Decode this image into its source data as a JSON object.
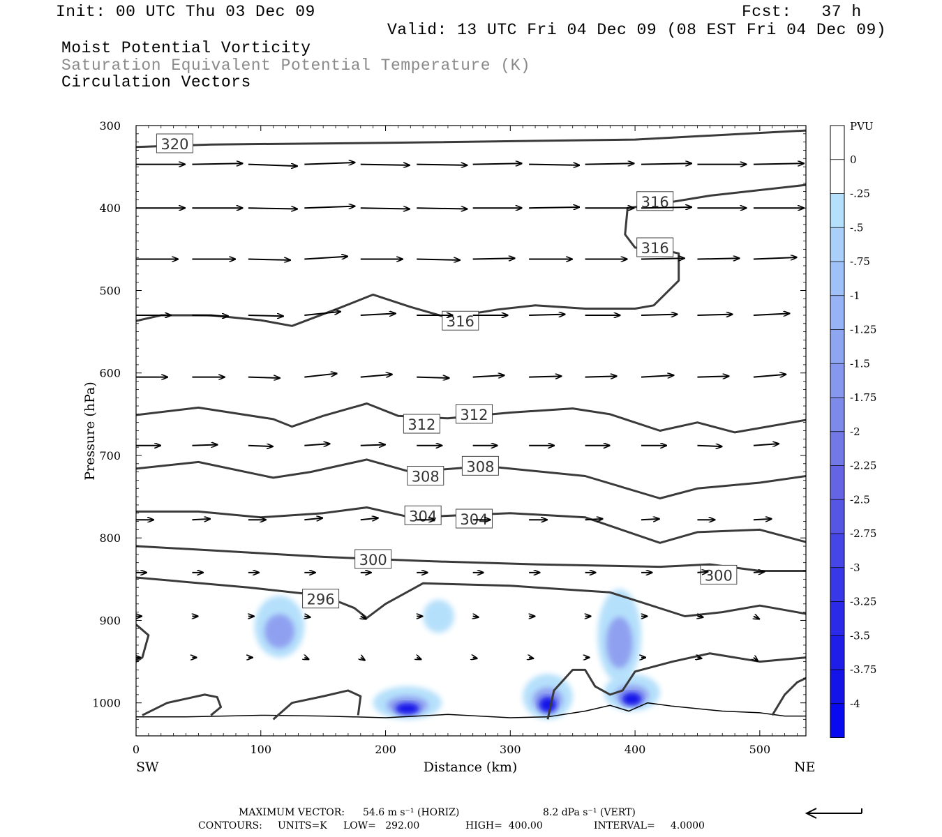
{
  "header": {
    "init": "Init: 00 UTC Thu 03 Dec 09",
    "fcst": "Fcst:   37 h",
    "valid": "Valid: 13 UTC Fri 04 Dec 09 (08 EST Fri 04 Dec 09)",
    "field1": "Moist Potential Vorticity",
    "field2": "Saturation Equivalent Potential Temperature (K)",
    "field3": "Circulation Vectors"
  },
  "footer": {
    "max_vector_prefix": "MAXIMUM VECTOR:",
    "max_horiz": "54.6 m s⁻¹ (HORIZ)",
    "max_vert": "8.2 dPa s⁻¹ (VERT)",
    "contours_prefix": "CONTOURS:",
    "units": "UNITS=K",
    "low": "LOW=   292.00",
    "high": "HIGH=  400.00",
    "interval": "INTERVAL=     4.0000"
  },
  "colors": {
    "contour": "#3a3a3a",
    "terrain": "#000000",
    "mpv_light": "#b5e0fb",
    "mpv_mid": "#8fa0f0",
    "mpv_dark": "#1414e8"
  },
  "chart_data": {
    "type": "cross-section",
    "xlabel": "Distance (km)",
    "ylabel": "Pressure (hPa)",
    "xlim": [
      0,
      537
    ],
    "ylim": [
      1040,
      300
    ],
    "x_ticks": [
      0,
      100,
      200,
      300,
      400,
      500
    ],
    "y_ticks": [
      300,
      400,
      500,
      600,
      700,
      800,
      900,
      1000
    ],
    "x_end_labels": {
      "left": "SW",
      "right": "NE"
    },
    "colorbar": {
      "unit": "PVU",
      "labels": [
        "0",
        "-.25",
        "-.5",
        "-.75",
        "-1",
        "-1.25",
        "-1.5",
        "-1.75",
        "-2",
        "-2.25",
        "-2.5",
        "-2.75",
        "-3",
        "-3.25",
        "-3.5",
        "-3.75",
        "-4"
      ],
      "colors": [
        "#ffffff",
        "#ffffff",
        "#b5e0fb",
        "#aad0fa",
        "#a0c0f8",
        "#98b2f6",
        "#8ea6f2",
        "#8698ee",
        "#7e8aea",
        "#7278e6",
        "#6464e4",
        "#5656e4",
        "#4646e6",
        "#3838e8",
        "#2a2ae8",
        "#1e1ee8",
        "#1414e8",
        "#0a0af0"
      ]
    },
    "theta_es_contours": [
      {
        "level": 320,
        "points": [
          [
            0,
            326
          ],
          [
            60,
            323
          ],
          [
            200,
            321
          ],
          [
            400,
            317
          ],
          [
            537,
            306
          ]
        ],
        "labels": [
          {
            "text": "320",
            "x": 31,
            "p": 322
          }
        ]
      },
      {
        "level": 316,
        "points": [
          [
            0,
            537
          ],
          [
            20,
            530
          ],
          [
            60,
            530
          ],
          [
            100,
            536
          ],
          [
            125,
            543
          ],
          [
            160,
            523
          ],
          [
            190,
            505
          ],
          [
            220,
            520
          ],
          [
            250,
            533
          ],
          [
            290,
            523
          ],
          [
            320,
            518
          ],
          [
            360,
            522
          ],
          [
            400,
            522
          ],
          [
            415,
            518
          ],
          [
            435,
            488
          ],
          [
            435,
            455
          ],
          [
            420,
            450
          ],
          [
            400,
            448
          ],
          [
            392,
            432
          ],
          [
            394,
            400
          ],
          [
            420,
            395
          ],
          [
            460,
            385
          ],
          [
            537,
            372
          ]
        ],
        "labels": [
          {
            "text": "316",
            "x": 260,
            "p": 537
          },
          {
            "text": "316",
            "x": 416,
            "p": 392
          },
          {
            "text": "316",
            "x": 416,
            "p": 448
          }
        ]
      },
      {
        "level": 312,
        "points": [
          [
            0,
            651
          ],
          [
            50,
            642
          ],
          [
            110,
            656
          ],
          [
            125,
            665
          ],
          [
            150,
            652
          ],
          [
            185,
            637
          ],
          [
            210,
            652
          ],
          [
            250,
            655
          ],
          [
            300,
            648
          ],
          [
            350,
            643
          ],
          [
            380,
            650
          ],
          [
            420,
            670
          ],
          [
            450,
            660
          ],
          [
            480,
            672
          ],
          [
            537,
            657
          ]
        ],
        "labels": [
          {
            "text": "312",
            "x": 229,
            "p": 662
          },
          {
            "text": "312",
            "x": 271,
            "p": 650
          }
        ]
      },
      {
        "level": 308,
        "points": [
          [
            0,
            716
          ],
          [
            50,
            708
          ],
          [
            110,
            727
          ],
          [
            140,
            720
          ],
          [
            185,
            705
          ],
          [
            220,
            720
          ],
          [
            280,
            713
          ],
          [
            360,
            725
          ],
          [
            420,
            752
          ],
          [
            450,
            740
          ],
          [
            500,
            733
          ],
          [
            537,
            725
          ]
        ],
        "labels": [
          {
            "text": "308",
            "x": 232,
            "p": 725
          },
          {
            "text": "308",
            "x": 276,
            "p": 713
          }
        ]
      },
      {
        "level": 304,
        "points": [
          [
            0,
            768
          ],
          [
            50,
            768
          ],
          [
            100,
            775
          ],
          [
            150,
            770
          ],
          [
            185,
            763
          ],
          [
            220,
            775
          ],
          [
            300,
            770
          ],
          [
            360,
            775
          ],
          [
            420,
            806
          ],
          [
            450,
            793
          ],
          [
            500,
            790
          ],
          [
            537,
            805
          ]
        ],
        "labels": [
          {
            "text": "304",
            "x": 230,
            "p": 773
          },
          {
            "text": "304",
            "x": 271,
            "p": 777
          }
        ]
      },
      {
        "level": 300,
        "points": [
          [
            0,
            810
          ],
          [
            60,
            815
          ],
          [
            150,
            823
          ],
          [
            230,
            828
          ],
          [
            320,
            832
          ],
          [
            420,
            835
          ],
          [
            460,
            832
          ],
          [
            500,
            840
          ],
          [
            537,
            840
          ]
        ],
        "labels": [
          {
            "text": "300",
            "x": 190,
            "p": 826
          },
          {
            "text": "300",
            "x": 467,
            "p": 845
          }
        ]
      },
      {
        "level": 296,
        "points": [
          [
            0,
            848
          ],
          [
            90,
            860
          ],
          [
            150,
            870
          ],
          [
            175,
            885
          ],
          [
            185,
            897
          ],
          [
            200,
            880
          ],
          [
            230,
            855
          ],
          [
            300,
            858
          ],
          [
            380,
            866
          ],
          [
            405,
            878
          ],
          [
            440,
            895
          ],
          [
            470,
            890
          ],
          [
            500,
            882
          ],
          [
            537,
            892
          ]
        ],
        "labels": [
          {
            "text": "296",
            "x": 148,
            "p": 874
          }
        ]
      }
    ],
    "mpv_regions": [
      {
        "x": [
          95,
          135
        ],
        "p": [
          870,
          945
        ],
        "min": -0.75
      },
      {
        "x": [
          230,
          255
        ],
        "p": [
          875,
          915
        ],
        "min": -0.25
      },
      {
        "x": [
          370,
          405
        ],
        "p": [
          862,
          975
        ],
        "min": -1.0
      },
      {
        "x": [
          190,
          245
        ],
        "p": [
          980,
          1020
        ],
        "min": -4.0
      },
      {
        "x": [
          310,
          350
        ],
        "p": [
          965,
          1020
        ],
        "min": -4.0
      },
      {
        "x": [
          375,
          420
        ],
        "p": [
          965,
          1010
        ],
        "min": -4.0
      }
    ]
  }
}
